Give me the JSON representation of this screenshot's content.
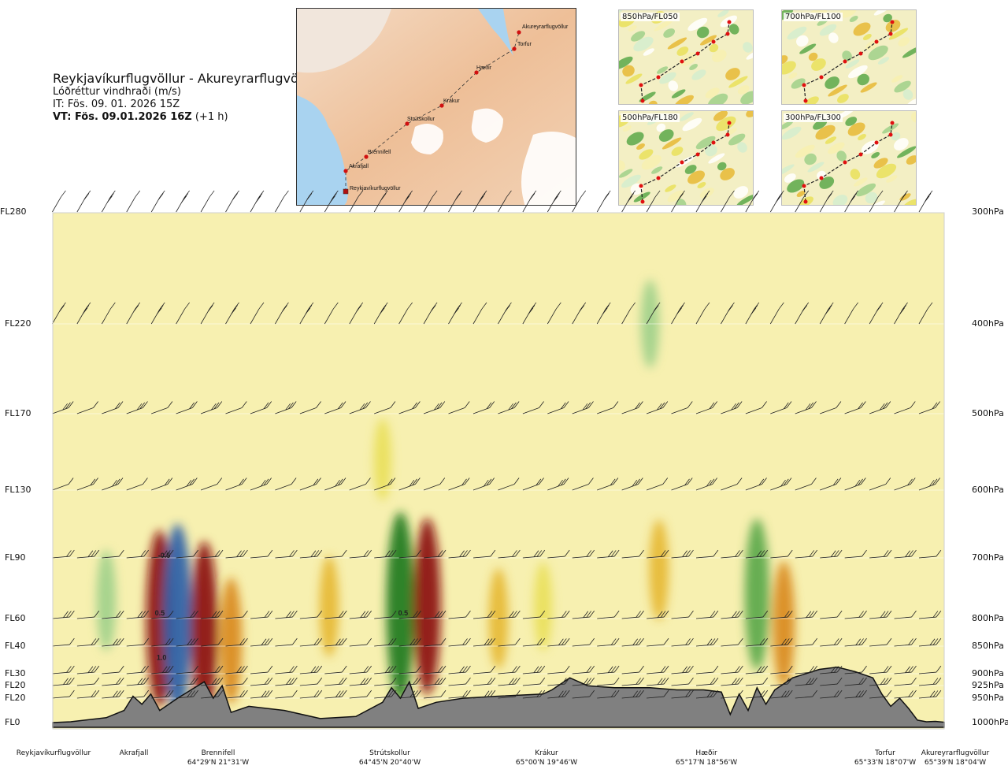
{
  "header": {
    "title": "Reykjavíkurflugvöllur - Akureyrarflugvöllur",
    "subtitle": "Lóðréttur vindhraði (m/s)",
    "issue_time": "IT: Fös. 09. 01. 2026 15Z",
    "valid_time_bold": "VT: Fös. 09.01.2026 16Z",
    "valid_offset": " (+1 h)"
  },
  "map": {
    "points": [
      {
        "name": "Akureyrarflugvöllur"
      },
      {
        "name": "Torfur"
      },
      {
        "name": "Hæðir"
      },
      {
        "name": "Krákur"
      },
      {
        "name": "Strútskollur"
      },
      {
        "name": "Brennifell"
      },
      {
        "name": "Akrafjall"
      },
      {
        "name": "Reykjavíkurflugvöllur"
      }
    ]
  },
  "thumbnails": [
    {
      "label": "850hPa/FL050"
    },
    {
      "label": "700hPa/FL100"
    },
    {
      "label": "500hPa/FL180"
    },
    {
      "label": "300hPa/FL300"
    }
  ],
  "chart_data": {
    "type": "heatmap",
    "levels": [
      {
        "fl": "FL280",
        "hpa": "300hPa",
        "p": 300
      },
      {
        "fl": "FL220",
        "hpa": "400hPa",
        "p": 400
      },
      {
        "fl": "FL170",
        "hpa": "500hPa",
        "p": 500
      },
      {
        "fl": "FL130",
        "hpa": "600hPa",
        "p": 600
      },
      {
        "fl": "FL90",
        "hpa": "700hPa",
        "p": 700
      },
      {
        "fl": "FL60",
        "hpa": "800hPa",
        "p": 800
      },
      {
        "fl": "FL40",
        "hpa": "850hPa",
        "p": 850
      },
      {
        "fl": "FL30",
        "hpa": "900hPa",
        "p": 900
      },
      {
        "fl": "FL20",
        "hpa": "925hPa",
        "p": 925
      },
      {
        "fl": "FL20",
        "hpa": "950hPa",
        "p": 950
      },
      {
        "fl": "FL0",
        "hpa": "1000hPa",
        "p": 1000
      }
    ],
    "locations": [
      {
        "name": "Reykjavíkurflugvöllur",
        "coord": "",
        "pos": 0.0
      },
      {
        "name": "Akrafjall",
        "coord": "",
        "pos": 0.09
      },
      {
        "name": "Brennifell",
        "coord": "64°29'N 21°31'W",
        "pos": 0.185
      },
      {
        "name": "Strútskollur",
        "coord": "64°45'N 20°40'W",
        "pos": 0.375
      },
      {
        "name": "Krákur",
        "coord": "65°00'N 19°46'W",
        "pos": 0.575
      },
      {
        "name": "Hæðir",
        "coord": "65°17'N 18°56'W",
        "pos": 0.74
      },
      {
        "name": "Torfur",
        "coord": "65°33'N 18°07'W",
        "pos": 0.95
      },
      {
        "name": "Akureyrarflugvöllur",
        "coord": "65°39'N 18°04'W",
        "pos": 1.0
      }
    ],
    "contour_labels": [
      {
        "text": "0.5",
        "pos": 0.12,
        "p": 795
      },
      {
        "text": "-0.5",
        "pos": 0.125,
        "p": 700
      },
      {
        "text": "1.0",
        "pos": 0.122,
        "p": 875
      },
      {
        "text": "0.5",
        "pos": 0.393,
        "p": 795
      }
    ],
    "cells": [
      {
        "x": 0.06,
        "p": 770,
        "v": -0.3
      },
      {
        "x": 0.12,
        "p": 800,
        "v": 0.9
      },
      {
        "x": 0.14,
        "p": 800,
        "v": -1.3
      },
      {
        "x": 0.17,
        "p": 820,
        "v": 0.9
      },
      {
        "x": 0.2,
        "p": 840,
        "v": 0.5
      },
      {
        "x": 0.31,
        "p": 780,
        "v": 0.3
      },
      {
        "x": 0.39,
        "p": 780,
        "v": -1.0
      },
      {
        "x": 0.42,
        "p": 780,
        "v": 0.9
      },
      {
        "x": 0.5,
        "p": 800,
        "v": 0.3
      },
      {
        "x": 0.55,
        "p": 780,
        "v": 0.2
      },
      {
        "x": 0.68,
        "p": 720,
        "v": 0.3
      },
      {
        "x": 0.79,
        "p": 760,
        "v": -0.7
      },
      {
        "x": 0.82,
        "p": 810,
        "v": 0.5
      },
      {
        "x": 0.67,
        "p": 400,
        "v": -0.2
      },
      {
        "x": 0.37,
        "p": 560,
        "v": 0.15
      }
    ],
    "colorscale": [
      "#2b5ea7",
      "#1f7a1f",
      "#5aa84a",
      "#9fd08a",
      "#d4edcf",
      "#f7f0b0",
      "#e9e05a",
      "#e6b835",
      "#d9891e",
      "#a8421a",
      "#8a1010"
    ],
    "terrain_color": "#808080"
  }
}
